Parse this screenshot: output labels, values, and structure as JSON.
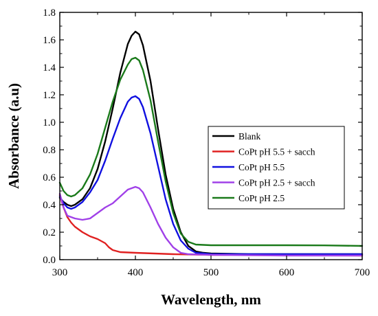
{
  "chart_data": {
    "type": "line",
    "title": "",
    "xlabel": "Wavelength, nm",
    "ylabel": "Absorbance (a.u)",
    "xlim": [
      300,
      700
    ],
    "ylim": [
      0.0,
      1.8
    ],
    "x_ticks": [
      300,
      400,
      500,
      600,
      700
    ],
    "x_tick_labels": [
      "300",
      "400",
      "500",
      "600",
      "700"
    ],
    "y_ticks": [
      0.0,
      0.2,
      0.4,
      0.6,
      0.8,
      1.0,
      1.2,
      1.4,
      1.6,
      1.8
    ],
    "y_tick_labels": [
      "0.0",
      "0.2",
      "0.4",
      "0.6",
      "0.8",
      "1.0",
      "1.2",
      "1.4",
      "1.6",
      "1.8"
    ],
    "grid": false,
    "legend_position": "middle-right",
    "series": [
      {
        "name": "Blank",
        "color": "#000000",
        "points": [
          [
            300,
            0.45
          ],
          [
            305,
            0.42
          ],
          [
            310,
            0.4
          ],
          [
            315,
            0.39
          ],
          [
            320,
            0.4
          ],
          [
            330,
            0.44
          ],
          [
            340,
            0.52
          ],
          [
            350,
            0.66
          ],
          [
            360,
            0.86
          ],
          [
            370,
            1.1
          ],
          [
            380,
            1.36
          ],
          [
            390,
            1.57
          ],
          [
            395,
            1.63
          ],
          [
            400,
            1.66
          ],
          [
            405,
            1.64
          ],
          [
            410,
            1.56
          ],
          [
            420,
            1.3
          ],
          [
            430,
            0.95
          ],
          [
            440,
            0.62
          ],
          [
            450,
            0.37
          ],
          [
            460,
            0.2
          ],
          [
            470,
            0.1
          ],
          [
            480,
            0.06
          ],
          [
            490,
            0.05
          ],
          [
            500,
            0.045
          ],
          [
            550,
            0.04
          ],
          [
            600,
            0.04
          ],
          [
            650,
            0.04
          ],
          [
            700,
            0.04
          ]
        ]
      },
      {
        "name": "CoPt pH 5.5 + sacch",
        "color": "#e02020",
        "points": [
          [
            300,
            0.47
          ],
          [
            305,
            0.38
          ],
          [
            310,
            0.31
          ],
          [
            315,
            0.27
          ],
          [
            320,
            0.24
          ],
          [
            330,
            0.2
          ],
          [
            340,
            0.17
          ],
          [
            350,
            0.15
          ],
          [
            360,
            0.12
          ],
          [
            365,
            0.09
          ],
          [
            370,
            0.07
          ],
          [
            380,
            0.055
          ],
          [
            400,
            0.05
          ],
          [
            450,
            0.04
          ],
          [
            500,
            0.035
          ],
          [
            600,
            0.032
          ],
          [
            700,
            0.03
          ]
        ]
      },
      {
        "name": "CoPt pH 5.5",
        "color": "#1010e0",
        "points": [
          [
            300,
            0.46
          ],
          [
            305,
            0.41
          ],
          [
            310,
            0.38
          ],
          [
            315,
            0.37
          ],
          [
            320,
            0.38
          ],
          [
            330,
            0.42
          ],
          [
            340,
            0.49
          ],
          [
            350,
            0.58
          ],
          [
            360,
            0.72
          ],
          [
            370,
            0.88
          ],
          [
            380,
            1.03
          ],
          [
            390,
            1.15
          ],
          [
            395,
            1.18
          ],
          [
            400,
            1.19
          ],
          [
            405,
            1.17
          ],
          [
            410,
            1.11
          ],
          [
            420,
            0.92
          ],
          [
            430,
            0.68
          ],
          [
            440,
            0.44
          ],
          [
            450,
            0.26
          ],
          [
            460,
            0.14
          ],
          [
            470,
            0.08
          ],
          [
            480,
            0.05
          ],
          [
            490,
            0.045
          ],
          [
            500,
            0.04
          ],
          [
            600,
            0.04
          ],
          [
            700,
            0.04
          ]
        ]
      },
      {
        "name": "CoPt pH 2.5 + sacch",
        "color": "#a040e8",
        "points": [
          [
            300,
            0.48
          ],
          [
            305,
            0.38
          ],
          [
            310,
            0.32
          ],
          [
            320,
            0.3
          ],
          [
            330,
            0.29
          ],
          [
            340,
            0.3
          ],
          [
            350,
            0.34
          ],
          [
            360,
            0.38
          ],
          [
            370,
            0.41
          ],
          [
            380,
            0.46
          ],
          [
            390,
            0.51
          ],
          [
            400,
            0.53
          ],
          [
            405,
            0.52
          ],
          [
            410,
            0.49
          ],
          [
            420,
            0.38
          ],
          [
            430,
            0.26
          ],
          [
            440,
            0.16
          ],
          [
            450,
            0.09
          ],
          [
            460,
            0.05
          ],
          [
            470,
            0.04
          ],
          [
            500,
            0.035
          ],
          [
            600,
            0.03
          ],
          [
            700,
            0.03
          ]
        ]
      },
      {
        "name": "CoPt pH 2.5",
        "color": "#1a7a1a",
        "points": [
          [
            300,
            0.56
          ],
          [
            305,
            0.5
          ],
          [
            310,
            0.47
          ],
          [
            315,
            0.46
          ],
          [
            320,
            0.47
          ],
          [
            330,
            0.52
          ],
          [
            340,
            0.62
          ],
          [
            350,
            0.77
          ],
          [
            360,
            0.96
          ],
          [
            370,
            1.15
          ],
          [
            380,
            1.31
          ],
          [
            390,
            1.42
          ],
          [
            395,
            1.46
          ],
          [
            400,
            1.47
          ],
          [
            405,
            1.45
          ],
          [
            410,
            1.38
          ],
          [
            420,
            1.16
          ],
          [
            430,
            0.86
          ],
          [
            440,
            0.57
          ],
          [
            450,
            0.34
          ],
          [
            460,
            0.19
          ],
          [
            470,
            0.13
          ],
          [
            480,
            0.11
          ],
          [
            500,
            0.105
          ],
          [
            550,
            0.105
          ],
          [
            600,
            0.105
          ],
          [
            650,
            0.104
          ],
          [
            700,
            0.1
          ]
        ]
      }
    ]
  }
}
